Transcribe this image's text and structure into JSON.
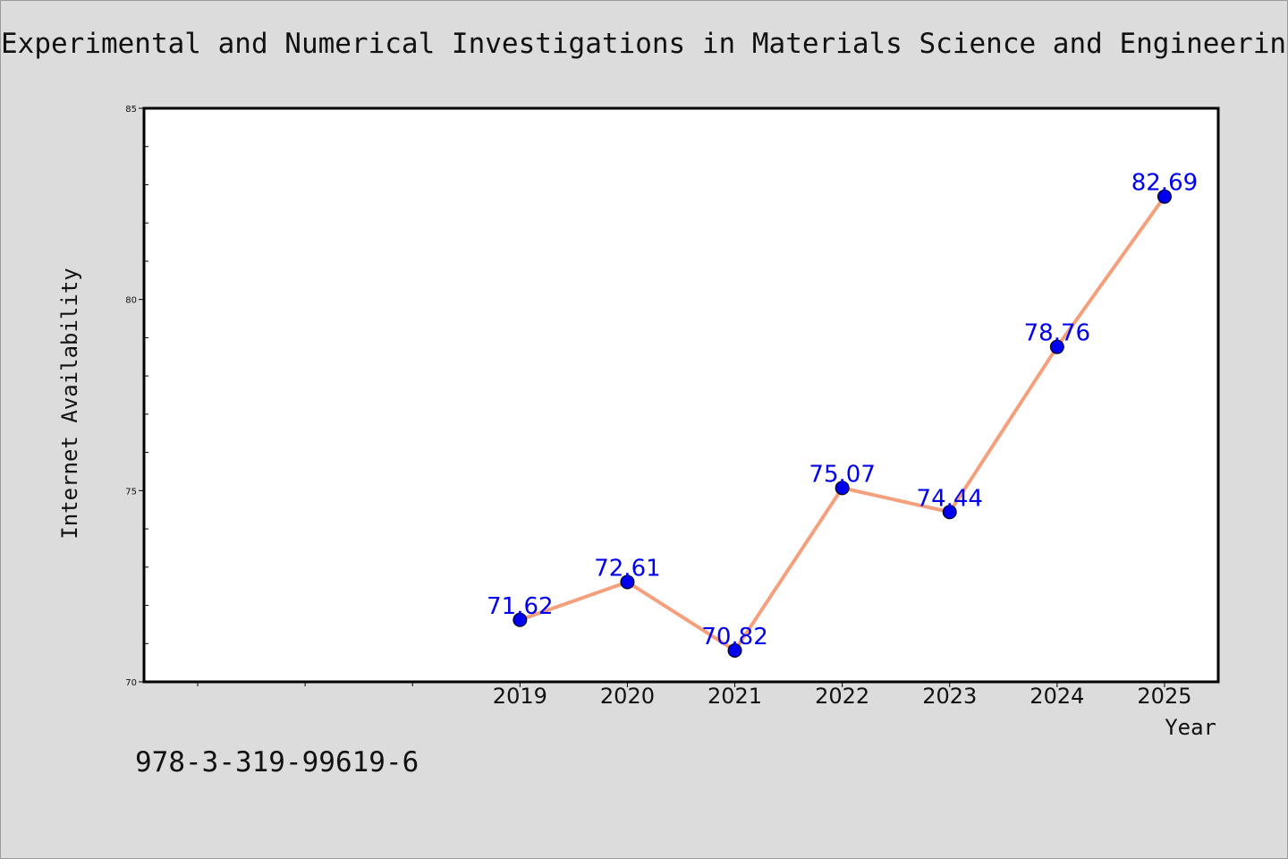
{
  "figure": {
    "background": "#dcdcdc",
    "footer_text": "978-3-319-99619-6"
  },
  "chart_data": {
    "type": "line",
    "title": "Experimental and Numerical Investigations in Materials Science and Engineering",
    "xlabel": "Year",
    "ylabel": "Internet Availability",
    "x": [
      2019,
      2020,
      2021,
      2022,
      2023,
      2024,
      2025
    ],
    "xlim": [
      2015.5,
      2025.5
    ],
    "ylim": [
      70,
      85
    ],
    "yticks": [
      70,
      75,
      80,
      85
    ],
    "series": [
      {
        "values": [
          71.62,
          72.61,
          70.82,
          75.07,
          74.44,
          78.76,
          82.69
        ],
        "line_color": "#f4a07c",
        "marker_color": "#0000ee",
        "label_color": "#0000ee"
      }
    ],
    "grid": false,
    "legend": "none"
  }
}
